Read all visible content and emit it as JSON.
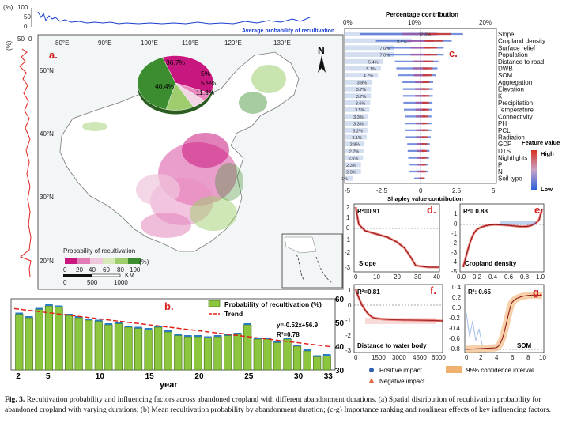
{
  "figure": {
    "caption_label": "Fig. 3.",
    "caption_text": "Recultivation probability and influencing factors across abandoned cropland with different abandonment durations. (a) Spatial distribution of recultivation probability for abandoned cropland with varying durations; (b) Mean recultivation probability by abandonment duration; (c-g) Importance ranking and nonlinear effects of key influencing factors."
  },
  "panel_a": {
    "letter": "a.",
    "top_axis_label": "(%)",
    "top_ticks": [
      "100",
      "50",
      "0"
    ],
    "top_series_label": "Average probability of recultivation",
    "left_axis_label": "(%)",
    "left_ticks": [
      "50",
      "0"
    ],
    "lon_labels": [
      "80°E",
      "90°E",
      "100°E",
      "110°E",
      "120°E",
      "130°E"
    ],
    "lat_labels": [
      "50°N",
      "40°N",
      "30°N",
      "20°N"
    ],
    "north": "N",
    "legend_title": "Probability of recultivation",
    "legend_ticks": [
      "0",
      "20",
      "40",
      "60",
      "80",
      "100"
    ],
    "legend_unit": "(%)",
    "legend_colors": [
      "#c8187f",
      "#e07bb5",
      "#f0c6dd",
      "#d7e9b8",
      "#9fcd6e",
      "#3c8d2f"
    ],
    "scale_ticks": [
      "0",
      "500",
      "1000"
    ],
    "scale_unit": "KM",
    "pie": [
      {
        "label": "36.7%",
        "value": 36.7,
        "color": "#c8187f"
      },
      {
        "label": "5%",
        "value": 5.0,
        "color": "#e889bf"
      },
      {
        "label": "5.9%",
        "value": 5.9,
        "color": "#f3d6e6"
      },
      {
        "label": "11.9%",
        "value": 11.9,
        "color": "#9fcd6e"
      },
      {
        "label": "40.4%",
        "value": 40.4,
        "color": "#3c8d2f"
      }
    ]
  },
  "panel_b": {
    "letter": "b.",
    "legend_bar": "Probability of recultivation (%)",
    "legend_trend": "Trend",
    "equation": "y=-0.52x+56.9",
    "r2": "R²=0.78",
    "xlabel": "year",
    "x_ticks": [
      "2",
      "5",
      "10",
      "15",
      "20",
      "25",
      "30",
      "33"
    ],
    "y_ticks": [
      "60",
      "50",
      "40",
      "30"
    ]
  },
  "panel_c": {
    "letter": "c.",
    "title": "Percentage contribution",
    "top_ticks": [
      "0%",
      "10%",
      "20%"
    ],
    "bottom_ticks": [
      "-5",
      "-2.5",
      "0",
      "2.5",
      "5"
    ],
    "xlabel": "Shapley value contribution",
    "legend_title": "Feature value",
    "legend_high": "High",
    "legend_low": "Low",
    "features": [
      {
        "name": "Slope",
        "pct": "12.8%"
      },
      {
        "name": "Cropland density",
        "pct": "9.4%"
      },
      {
        "name": "Surface relief",
        "pct": "7.0%"
      },
      {
        "name": "Population",
        "pct": "7.0%"
      },
      {
        "name": "Distance to road",
        "pct": "5.4%"
      },
      {
        "name": "DWB",
        "pct": "5.1%"
      },
      {
        "name": "SOM",
        "pct": "4.7%"
      },
      {
        "name": "Aggregation",
        "pct": "3.8%"
      },
      {
        "name": "Elevation",
        "pct": "3.7%"
      },
      {
        "name": "K",
        "pct": "3.7%"
      },
      {
        "name": "Precipitation",
        "pct": "3.6%"
      },
      {
        "name": "Temperature",
        "pct": "3.5%"
      },
      {
        "name": "Connectivity",
        "pct": "3.3%"
      },
      {
        "name": "PH",
        "pct": "3.3%"
      },
      {
        "name": "PCL",
        "pct": "3.2%"
      },
      {
        "name": "Radiation",
        "pct": "3.1%"
      },
      {
        "name": "GDP",
        "pct": "2.8%"
      },
      {
        "name": "DTS",
        "pct": "2.7%"
      },
      {
        "name": "Nightlights",
        "pct": "2.6%"
      },
      {
        "name": "P",
        "pct": "2.3%"
      },
      {
        "name": "N",
        "pct": "2.3%"
      },
      {
        "name": "Soil type",
        "pct": "1.1%"
      }
    ]
  },
  "panel_d": {
    "letter": "d.",
    "r2": "R²=0.91",
    "name": "Slope",
    "x_ticks": [
      "0",
      "10",
      "20",
      "30",
      "40"
    ],
    "y_ticks": [
      "2",
      "1",
      "0",
      "-1",
      "-2",
      "-3"
    ]
  },
  "panel_e": {
    "letter": "e.",
    "r2": "R²= 0.88",
    "name": "Cropland density",
    "x_ticks": [
      "0.0",
      "0.2",
      "0.4",
      "0.6",
      "0.8",
      "1.0"
    ],
    "y_ticks": [
      "1",
      "0",
      "-1",
      "-2",
      "-3",
      "-4",
      "-5"
    ]
  },
  "panel_f": {
    "letter": "f.",
    "r2": "R²=0.81",
    "name": "Distance to water body",
    "x_ticks": [
      "0",
      "1500",
      "3000",
      "4500",
      "6000"
    ],
    "y_ticks": [
      "1",
      "0",
      "-1",
      "-2",
      "-3"
    ]
  },
  "panel_g": {
    "letter": "g.",
    "r2": "R²: 0.65",
    "name": "SOM",
    "x_ticks": [
      "0",
      "2",
      "4",
      "6",
      "8",
      "10"
    ],
    "y_ticks": [
      "0.4",
      "0.2",
      "0.0",
      "-0.2",
      "-0.4",
      "-0.6",
      "-0.8"
    ]
  },
  "bottom_legend": {
    "positive": "Positive impact",
    "negative": "Negative impact",
    "ci": "95% confidence interval"
  },
  "chart_data": {
    "type": "bar",
    "title": "Mean recultivation probability by abandonment duration",
    "xlabel": "year",
    "ylabel": "Probability of recultivation (%)",
    "ylim": [
      30,
      60
    ],
    "categories": [
      "2",
      "3",
      "4",
      "5",
      "6",
      "7",
      "8",
      "9",
      "10",
      "11",
      "12",
      "13",
      "14",
      "15",
      "16",
      "17",
      "18",
      "19",
      "20",
      "21",
      "22",
      "23",
      "24",
      "25",
      "26",
      "27",
      "28",
      "29",
      "30",
      "31",
      "32",
      "33"
    ],
    "values": [
      53.5,
      52,
      55.5,
      57,
      56.5,
      53,
      52,
      51,
      50.5,
      49,
      49.5,
      48,
      47.5,
      47,
      48,
      46,
      44.5,
      44,
      44,
      43.5,
      44,
      44.5,
      45,
      49,
      43,
      43,
      41.5,
      43,
      40,
      38,
      35.5,
      36
    ],
    "trend": {
      "slope": -0.52,
      "intercept": 56.9,
      "r2": 0.78
    }
  }
}
